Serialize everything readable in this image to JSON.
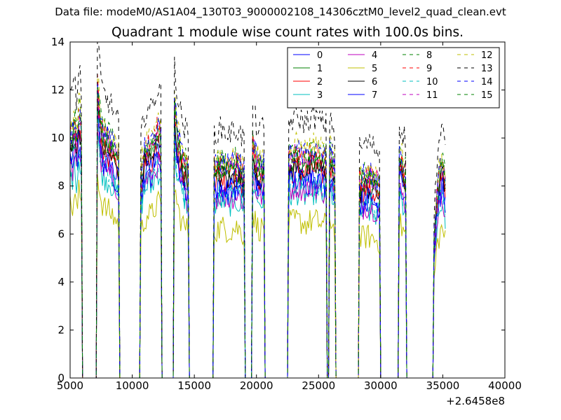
{
  "figure": {
    "suptitle": "Data file: modeM0/AS1A04_130T03_9000002108_14306cztM0_level2_quad_clean.evt"
  },
  "chart_data": {
    "type": "line",
    "title": "Quadrant 1 module wise count rates with 100.0s bins.",
    "xlabel": "",
    "ylabel": "",
    "xlim": [
      5000,
      40000
    ],
    "ylim": [
      0,
      14
    ],
    "x_offset_label": "+2.6458e8",
    "xticks": [
      5000,
      10000,
      15000,
      20000,
      25000,
      30000,
      35000,
      40000
    ],
    "yticks": [
      0,
      2,
      4,
      6,
      8,
      10,
      12,
      14
    ],
    "grid": false,
    "legend": {
      "placement": "top-right",
      "columns": 4
    },
    "bin_size_s": 100,
    "active_intervals": [
      {
        "start": 5000,
        "end": 5900,
        "base": [
          9.8,
          9.6,
          10.6,
          9.3,
          10.8,
          10.0
        ]
      },
      {
        "start": 7200,
        "end": 8900,
        "base": [
          12.0,
          10.2,
          9.8,
          9.6,
          9.5,
          9.3,
          9.0,
          8.8
        ]
      },
      {
        "start": 10700,
        "end": 12300,
        "base": [
          8.2,
          9.0,
          9.4,
          9.2,
          9.6,
          10.0,
          9.8
        ]
      },
      {
        "start": 13400,
        "end": 14500,
        "base": [
          11.0,
          9.6,
          9.0,
          8.6,
          8.4
        ]
      },
      {
        "start": 16600,
        "end": 19000,
        "base": [
          8.4,
          8.5,
          8.6,
          8.5,
          8.4,
          8.5,
          8.6,
          8.4,
          8.2
        ]
      },
      {
        "start": 19700,
        "end": 20600,
        "base": [
          9.5,
          8.7,
          8.5,
          8.6
        ]
      },
      {
        "start": 22600,
        "end": 25600,
        "base": [
          8.8,
          8.9,
          9.0,
          8.9,
          8.8,
          8.9,
          9.0,
          8.9,
          8.8,
          8.7
        ]
      },
      {
        "start": 25900,
        "end": 26300,
        "base": [
          9.2,
          8.4
        ]
      },
      {
        "start": 28300,
        "end": 29900,
        "base": [
          7.9,
          8.0,
          8.1,
          8.0,
          7.9,
          7.8
        ]
      },
      {
        "start": 31500,
        "end": 32000,
        "base": [
          8.8,
          8.2
        ]
      },
      {
        "start": 34300,
        "end": 35200,
        "base": [
          5.5,
          7.5,
          8.2,
          8.6,
          7.8
        ]
      }
    ],
    "series": [
      {
        "name": "0",
        "color": "#0000ff",
        "dash": "solid",
        "scale": 0.94
      },
      {
        "name": "1",
        "color": "#008000",
        "dash": "solid",
        "scale": 1.02
      },
      {
        "name": "2",
        "color": "#ff0000",
        "dash": "solid",
        "scale": 0.97
      },
      {
        "name": "3",
        "color": "#00bfbf",
        "dash": "solid",
        "scale": 0.86
      },
      {
        "name": "4",
        "color": "#bf00bf",
        "dash": "solid",
        "scale": 0.89
      },
      {
        "name": "5",
        "color": "#bfbf00",
        "dash": "solid",
        "scale": 0.73
      },
      {
        "name": "6",
        "color": "#000000",
        "dash": "solid",
        "scale": 0.98
      },
      {
        "name": "7",
        "color": "#0000ff",
        "dash": "solid",
        "scale": 0.92
      },
      {
        "name": "8",
        "color": "#008000",
        "dash": "dashed",
        "scale": 1.06
      },
      {
        "name": "9",
        "color": "#ff0000",
        "dash": "dashed",
        "scale": 1.04
      },
      {
        "name": "10",
        "color": "#00bfbf",
        "dash": "dashed",
        "scale": 0.9
      },
      {
        "name": "11",
        "color": "#bf00bf",
        "dash": "dashed",
        "scale": 1.03
      },
      {
        "name": "12",
        "color": "#bfbf00",
        "dash": "dashed",
        "scale": 1.08
      },
      {
        "name": "13",
        "color": "#000000",
        "dash": "dashed",
        "scale": 1.21
      },
      {
        "name": "14",
        "color": "#0000ff",
        "dash": "dashed",
        "scale": 1.05
      },
      {
        "name": "15",
        "color": "#008000",
        "dash": "dashed",
        "scale": 1.01
      }
    ]
  }
}
